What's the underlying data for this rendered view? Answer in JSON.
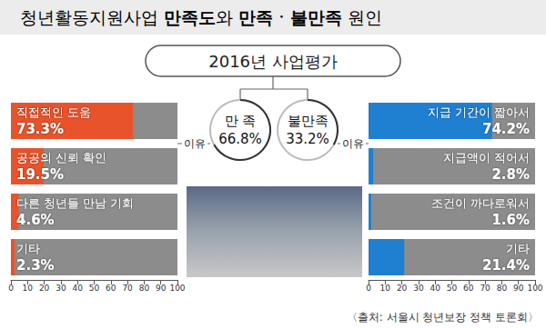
{
  "title_parts": [
    {
      "text": "청년활동지원사업 ",
      "bold": false
    },
    {
      "text": "만족도",
      "bold": true
    },
    {
      "text": "와 ",
      "bold": false
    },
    {
      "text": "만족ㆍ불만족",
      "bold": true
    },
    {
      "text": " 원인",
      "bold": false
    }
  ],
  "subtitle": "2016년 사업평가",
  "summary": [
    {
      "label": "만 족",
      "value": 66.8,
      "value_label": "66.8%"
    },
    {
      "label": "불만족",
      "value": 33.2,
      "value_label": "33.2%"
    }
  ],
  "reason_label": "이유",
  "source": "〈출처: 서울시 청년보장 정책 토론회〉",
  "chart_data": [
    {
      "type": "bar",
      "orientation": "horizontal",
      "categories": [
        "직접적인 도움",
        "공공의 신뢰 확인",
        "다른 청년들 만남 기회",
        "기타"
      ],
      "values": [
        73.3,
        19.5,
        4.6,
        2.3
      ],
      "value_labels": [
        "73.3%",
        "19.5%",
        "4.6%",
        "2.3%"
      ],
      "color": "#e8532b",
      "xlim": [
        0,
        100
      ],
      "xticks": [
        0,
        10,
        20,
        30,
        40,
        50,
        60,
        70,
        80,
        90,
        100
      ],
      "data_labels": true,
      "grid": false
    },
    {
      "type": "bar",
      "orientation": "horizontal",
      "categories": [
        "지급 기간이 짧아서",
        "지급액이 적어서",
        "조건이 까다로워서",
        "기타"
      ],
      "values": [
        74.2,
        2.8,
        1.6,
        21.4
      ],
      "value_labels": [
        "74.2%",
        "2.8%",
        "1.6%",
        "21.4%"
      ],
      "color": "#1f80d2",
      "xlim": [
        0,
        100
      ],
      "xticks": [
        0,
        10,
        20,
        30,
        40,
        50,
        60,
        70,
        80,
        90,
        100
      ],
      "data_labels": true,
      "grid": false
    }
  ]
}
